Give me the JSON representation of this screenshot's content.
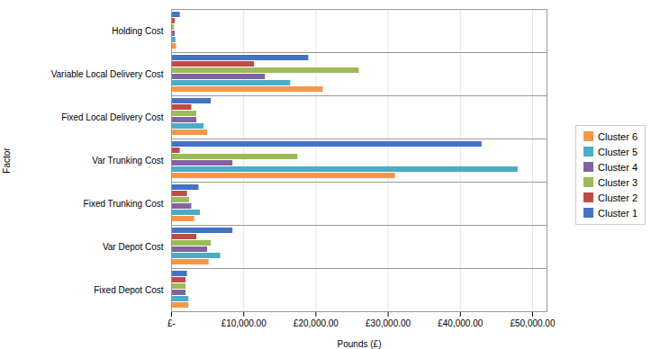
{
  "chart_data": {
    "type": "bar",
    "orientation": "horizontal",
    "categories": [
      "Holding Cost",
      "Variable Local Delivery Cost",
      "Fixed Local Delivery Cost",
      "Var Trunking Cost",
      "Fixed Trunking Cost",
      "Var Depot Cost",
      "Fixed Depot Cost"
    ],
    "series": [
      {
        "name": "Cluster 1",
        "color": "#4472C4",
        "values": [
          1200,
          19000,
          5500,
          43000,
          3800,
          8500,
          2200
        ]
      },
      {
        "name": "Cluster 2",
        "color": "#BE4B48",
        "values": [
          500,
          11500,
          2800,
          1200,
          2200,
          3500,
          2000
        ]
      },
      {
        "name": "Cluster 3",
        "color": "#9BBB59",
        "values": [
          400,
          26000,
          3500,
          17500,
          2500,
          5500,
          2000
        ]
      },
      {
        "name": "Cluster 4",
        "color": "#8064A2",
        "values": [
          500,
          13000,
          3500,
          8500,
          2800,
          5000,
          2000
        ]
      },
      {
        "name": "Cluster 5",
        "color": "#4BACC6",
        "values": [
          600,
          16500,
          4500,
          48000,
          4000,
          6800,
          2400
        ]
      },
      {
        "name": "Cluster 6",
        "color": "#F79646",
        "values": [
          700,
          21000,
          5000,
          31000,
          3200,
          5200,
          2400
        ]
      }
    ],
    "xlabel": "Pounds (£)",
    "ylabel": "Factor",
    "xlim": [
      0,
      52000
    ],
    "xticks": [
      {
        "value": 0,
        "label": "£-"
      },
      {
        "value": 10000,
        "label": "£10,000.00"
      },
      {
        "value": 20000,
        "label": "£20,000.00"
      },
      {
        "value": 30000,
        "label": "£30,000.00"
      },
      {
        "value": 40000,
        "label": "£40,000.00"
      },
      {
        "value": 50000,
        "label": "£50,000.00"
      }
    ],
    "grid": true,
    "legend": "right"
  }
}
